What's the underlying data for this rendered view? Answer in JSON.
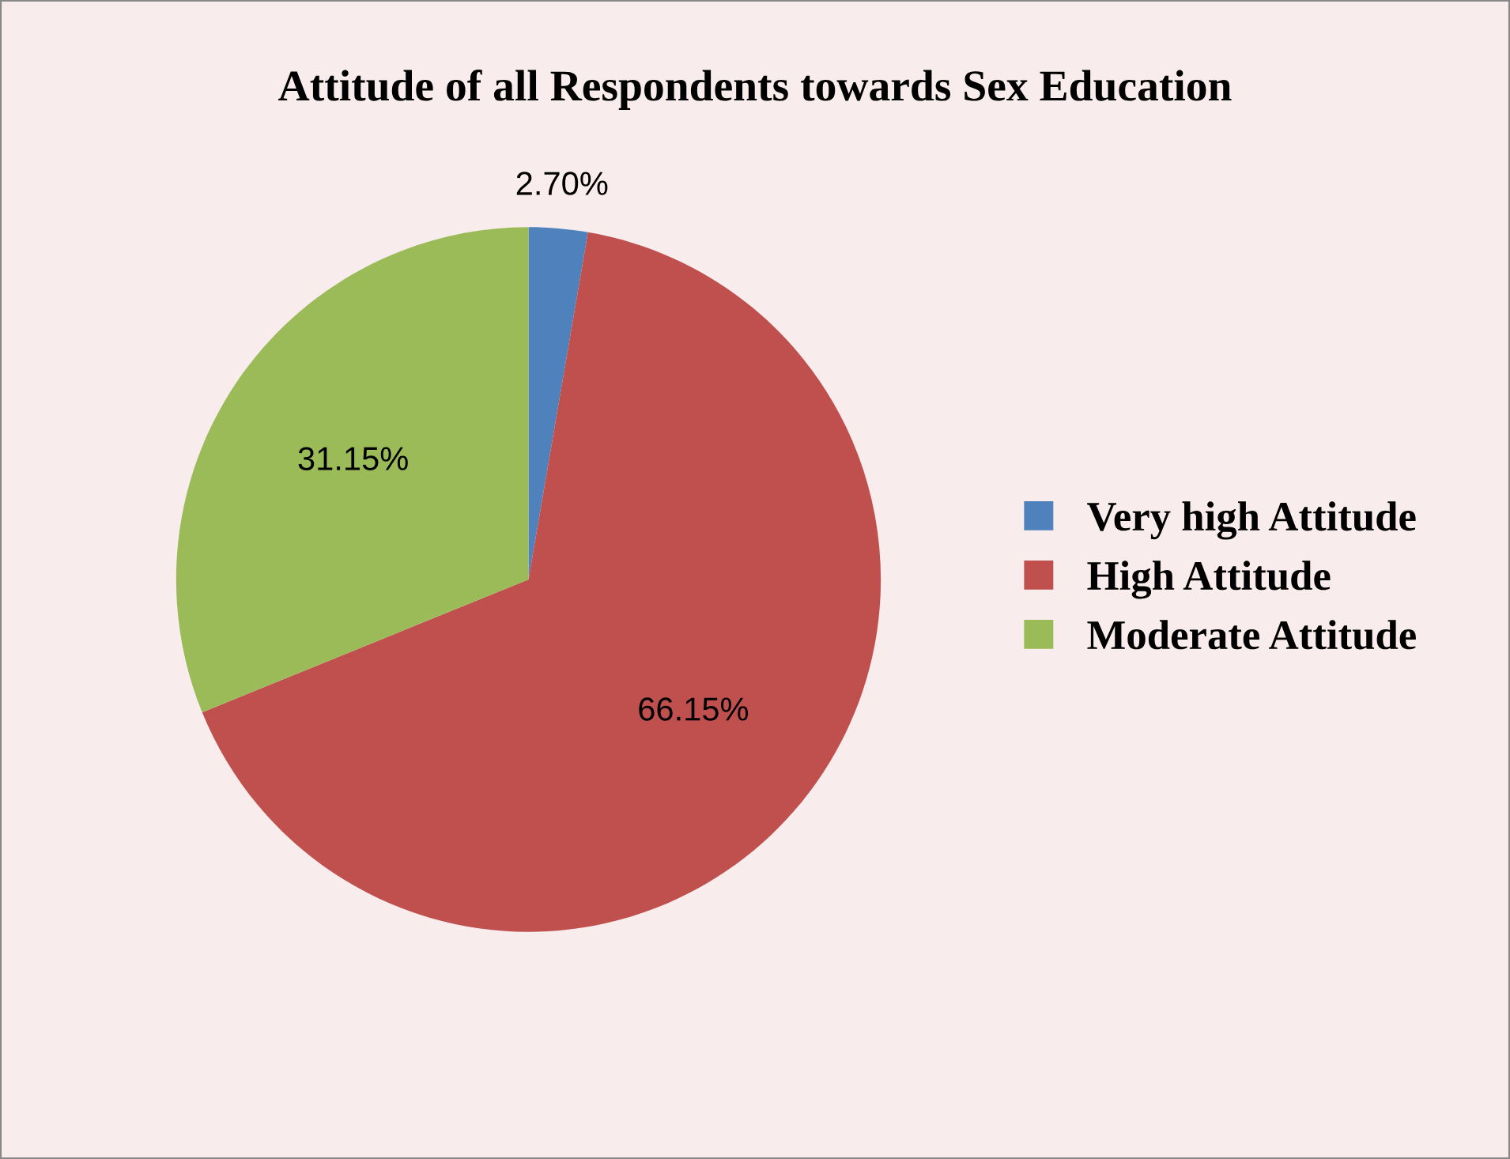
{
  "chart_data": {
    "type": "pie",
    "title": "Attitude of all Respondents towards Sex Education",
    "categories": [
      "Very high Attitude",
      "High Attitude",
      "Moderate Attitude"
    ],
    "values": [
      2.7,
      66.15,
      31.15
    ],
    "colors": [
      "#4f81bd",
      "#c0504d",
      "#9bbb59"
    ],
    "value_labels": [
      "2.70%",
      "66.15%",
      "31.15%"
    ],
    "legend": "right"
  }
}
